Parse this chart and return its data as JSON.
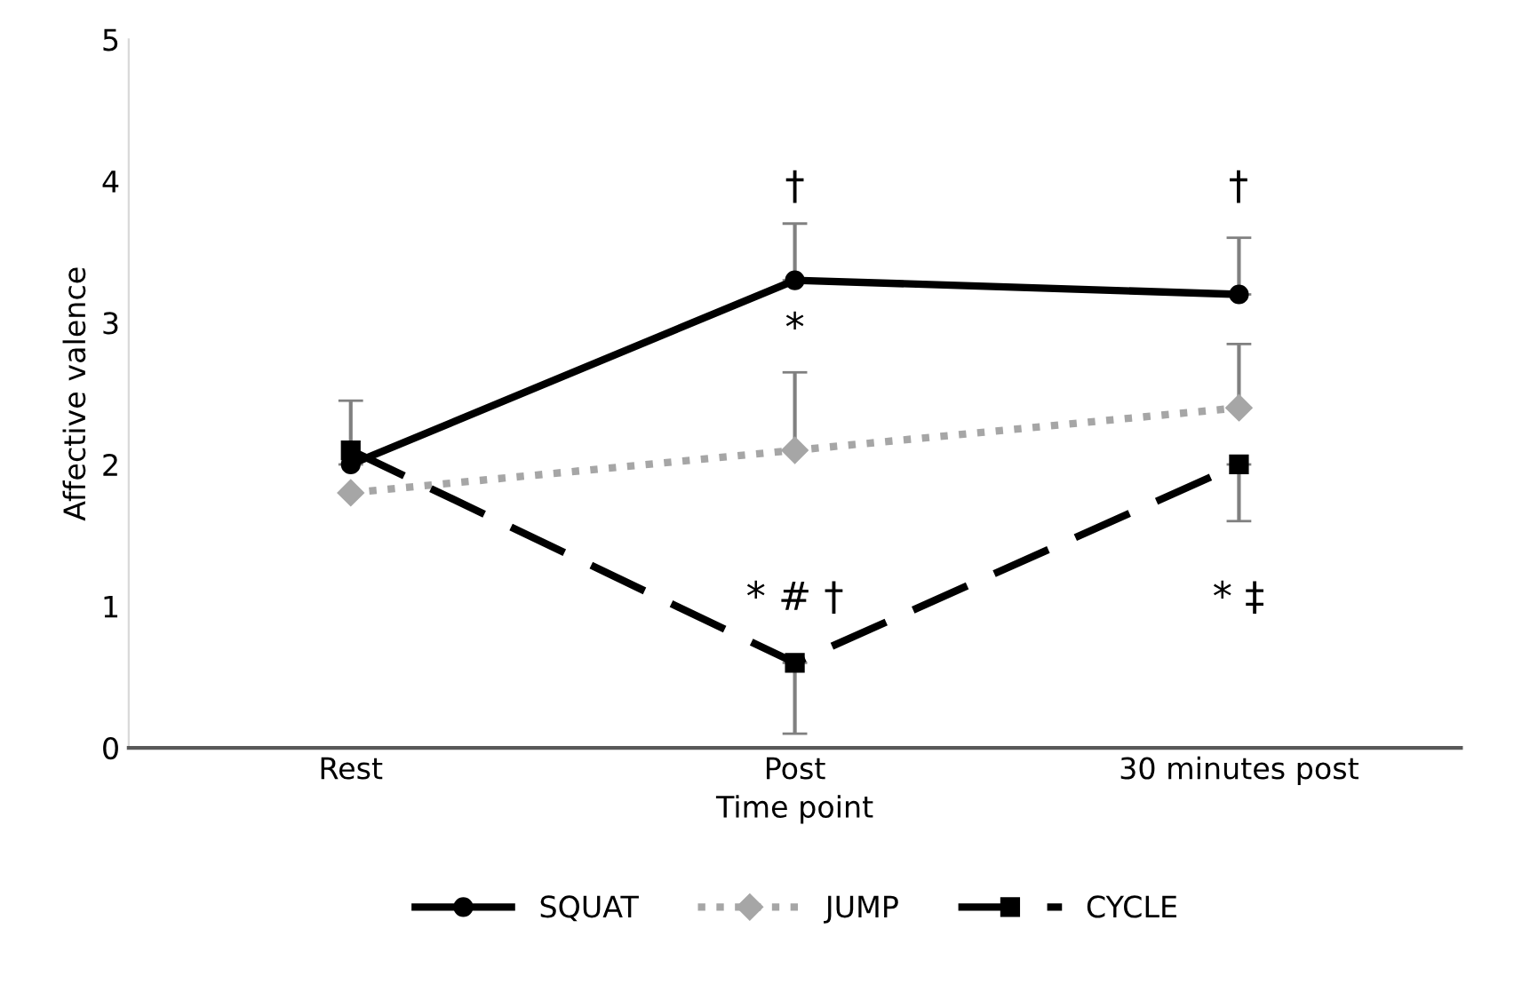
{
  "chart_data": {
    "type": "line",
    "xlabel": "Time point",
    "ylabel": "Affective valence",
    "categories": [
      "Rest",
      "Post",
      "30 minutes post"
    ],
    "series": [
      {
        "name": "SQUAT",
        "color": "#000000",
        "values": [
          2.0,
          3.3,
          3.2
        ],
        "marker": "circle",
        "line_style": "solid",
        "errors": [
          [
            2.0,
            2.45
          ],
          [
            3.3,
            3.7
          ],
          [
            3.2,
            3.6
          ]
        ]
      },
      {
        "name": "JUMP",
        "color": "#a6a6a6",
        "values": [
          1.8,
          2.1,
          2.4
        ],
        "marker": "diamond",
        "line_style": "dotted",
        "errors": [
          null,
          [
            2.1,
            2.65
          ],
          [
            2.4,
            2.85
          ]
        ]
      },
      {
        "name": "CYCLE",
        "color": "#000000",
        "values": [
          2.1,
          0.6,
          2.0
        ],
        "marker": "square",
        "line_style": "dashed",
        "errors": [
          null,
          [
            0.1,
            0.6
          ],
          [
            1.6,
            2.0
          ]
        ]
      }
    ],
    "ylim": [
      0,
      5
    ],
    "yticks": [
      0,
      1,
      2,
      3,
      4,
      5
    ],
    "grid": false,
    "legend": "bottom",
    "annotations": [
      "†",
      "*",
      "* # †",
      "†",
      "* ‡"
    ]
  }
}
